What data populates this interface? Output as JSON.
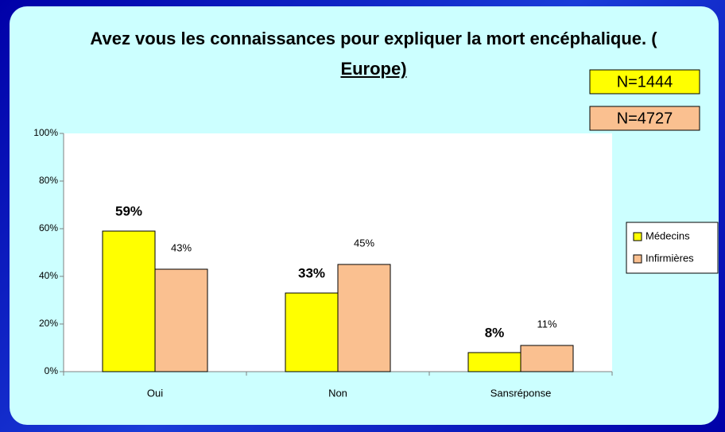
{
  "chart_data": {
    "type": "bar",
    "title": "Avez vous les connaissances pour expliquer la mort encéphalique. (",
    "title_underlined": "Europe)",
    "annotations": [
      {
        "text": "N=1444",
        "color": "#ffff00"
      },
      {
        "text": "N=4727",
        "color": "#fac090"
      }
    ],
    "categories": [
      "Oui",
      "Non",
      "Sansréponse"
    ],
    "series": [
      {
        "name": "Médecins",
        "color": "#ffff00",
        "values": [
          59,
          33,
          8
        ],
        "value_labels": [
          "59%",
          "33%",
          "8%"
        ]
      },
      {
        "name": "Infirmières",
        "color": "#fac090",
        "values": [
          43,
          45,
          11
        ],
        "value_labels": [
          "43%",
          "45%",
          "11%"
        ]
      }
    ],
    "ylim": [
      0,
      100
    ],
    "yticks": [
      {
        "value": 0,
        "label": "0%"
      },
      {
        "value": 20,
        "label": "20%"
      },
      {
        "value": 40,
        "label": "40%"
      },
      {
        "value": 60,
        "label": "60%"
      },
      {
        "value": 80,
        "label": "80%"
      },
      {
        "value": 100,
        "label": "100%"
      }
    ],
    "legend": "right",
    "grid": false
  }
}
